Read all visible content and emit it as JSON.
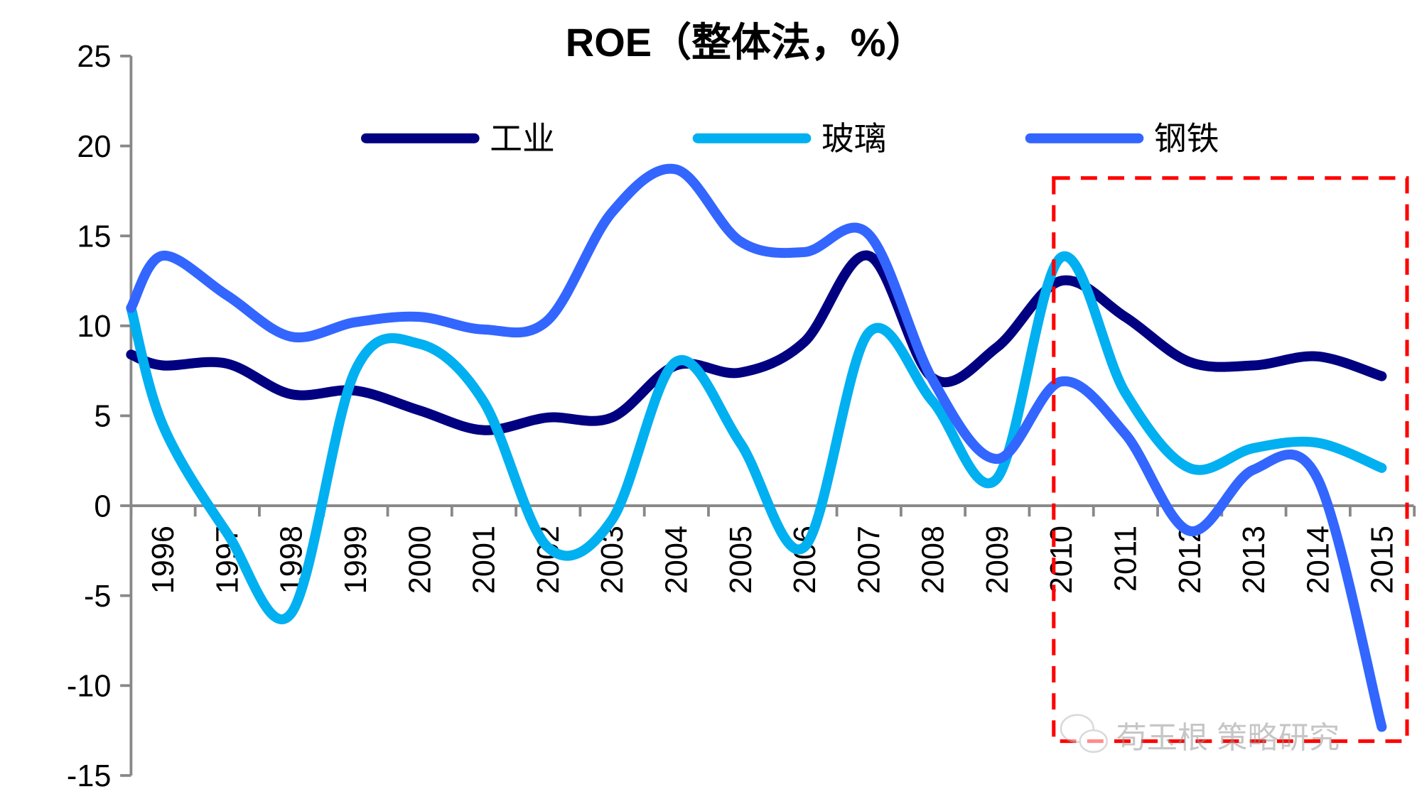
{
  "chart_data": {
    "type": "line",
    "title": "ROE（整体法，%）",
    "xlabel": "",
    "ylabel": "",
    "ylim": [
      -15,
      25
    ],
    "yticks": [
      -15,
      -10,
      -5,
      0,
      5,
      10,
      15,
      20,
      25
    ],
    "categories": [
      "1996",
      "1997",
      "1998",
      "1999",
      "2000",
      "2001",
      "2002",
      "2003",
      "2004",
      "2005",
      "2006",
      "2007",
      "2008",
      "2009",
      "2010",
      "2011",
      "2012",
      "2013",
      "2014",
      "2015"
    ],
    "legend_position": "top",
    "smooth": true,
    "series": [
      {
        "name": "工业",
        "color": "#000080",
        "start_value": 8.4,
        "values": [
          7.8,
          7.9,
          6.2,
          6.4,
          5.3,
          4.2,
          4.9,
          4.9,
          7.8,
          7.4,
          9.1,
          13.9,
          7.1,
          8.8,
          12.5,
          10.5,
          8.0,
          7.8,
          8.3,
          7.2
        ]
      },
      {
        "name": "玻璃",
        "color": "#00B0F0",
        "start_value": 11.0,
        "values": [
          4.5,
          -1.5,
          -6.0,
          7.5,
          9.0,
          5.8,
          -2.3,
          -0.8,
          8.0,
          3.5,
          -2.3,
          9.6,
          5.8,
          1.5,
          13.8,
          6.3,
          2.1,
          3.2,
          3.5,
          2.1
        ]
      },
      {
        "name": "钢铁",
        "color": "#3366FF",
        "start_value": 11.0,
        "values": [
          13.9,
          11.7,
          9.4,
          10.2,
          10.5,
          9.8,
          10.3,
          16.3,
          18.7,
          14.7,
          14.1,
          15.1,
          7.0,
          2.6,
          6.9,
          4.0,
          -1.4,
          2.0,
          1.5,
          -12.3
        ]
      }
    ],
    "annotation": {
      "type": "dashed-box",
      "color": "#FF0000",
      "from": "2010",
      "to": "2015"
    },
    "watermark": "苟玉根 策略研究"
  }
}
